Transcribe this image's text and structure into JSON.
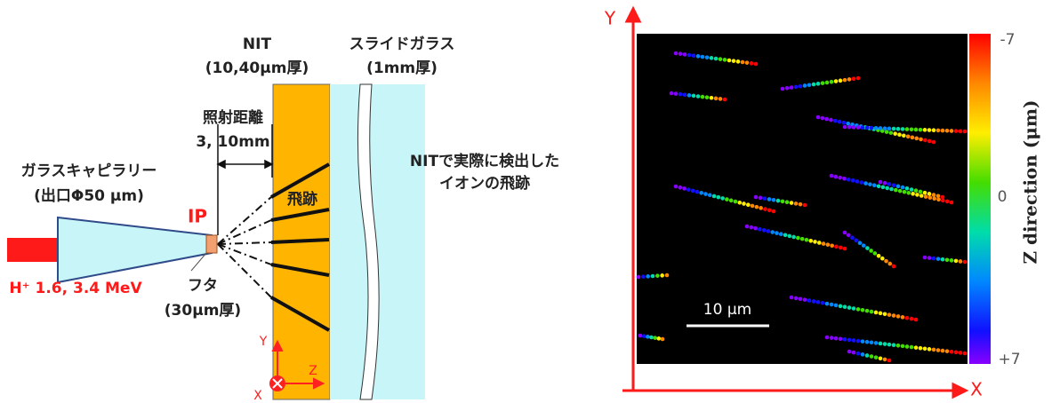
{
  "left": {
    "nit": "NIT",
    "nit_thickness": "(10,40μm厚)",
    "slide": "スライドガラス",
    "slide_thickness": "(1mm厚)",
    "distance_title": "照射距離",
    "distance_value": "3, 10mm",
    "detected_1": "NITで実際に検出した",
    "detected_2": "イオンの飛跡",
    "capillary": "ガラスキャピラリー",
    "capillary_exit": "(出口Φ50 μm)",
    "ip": "IP",
    "track": "飛跡",
    "beam": "H⁺ 1.6, 3.4 MeV",
    "lid": "フタ",
    "lid_thickness": "(30μm厚)",
    "axis_y": "Y",
    "axis_z": "Z",
    "axis_x": "X"
  },
  "right": {
    "axis_y": "Y",
    "axis_x": "X",
    "scale_bar": "10 μm",
    "colorbar_top": "-7",
    "colorbar_mid": "0",
    "colorbar_bottom": "+7",
    "colorbar_title": "Z direction (μm)"
  }
}
